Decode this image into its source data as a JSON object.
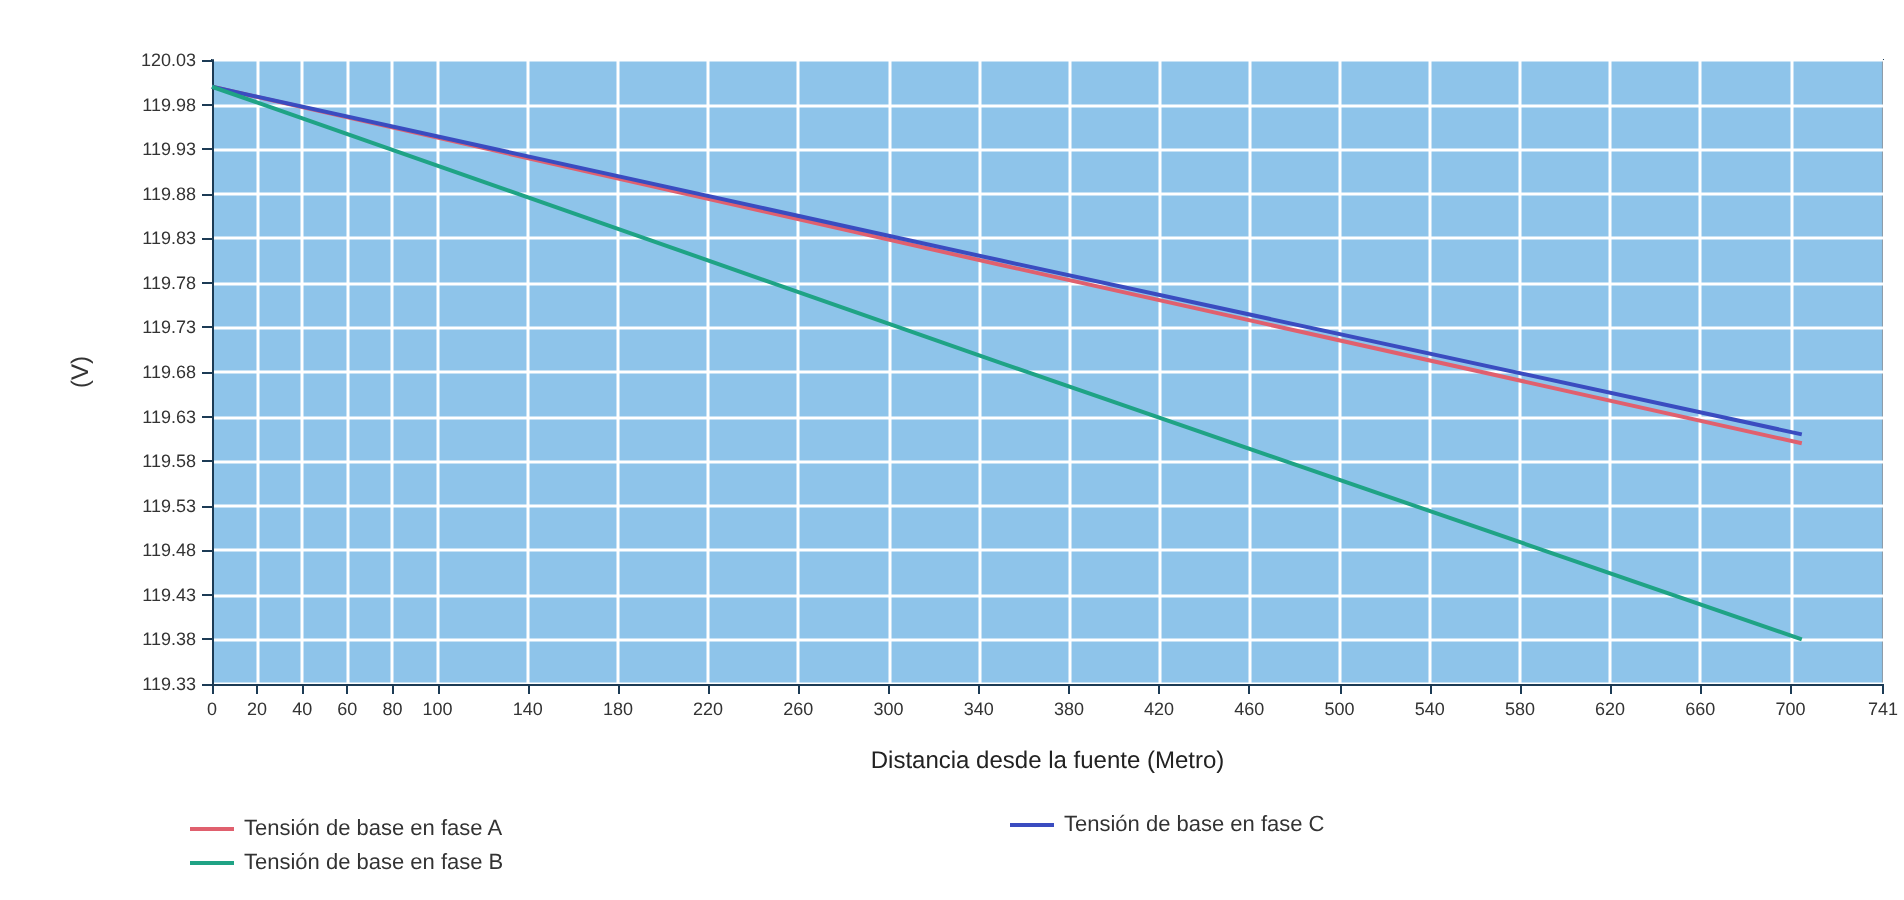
{
  "chart_data": {
    "type": "line",
    "xlabel": "Distancia desde la fuente (Metro)",
    "ylabel": "(V)",
    "series": [
      {
        "name": "Tensión de base en fase A",
        "color": "#e0606e",
        "x": [
          0,
          350,
          705
        ],
        "values": [
          120.0,
          119.8,
          119.6
        ]
      },
      {
        "name": "Tensión de base en fase C",
        "color": "#3a4cc0",
        "x": [
          0,
          350,
          705
        ],
        "values": [
          120.0,
          119.805,
          119.61
        ]
      },
      {
        "name": "Tensión de base en fase B",
        "color": "#1fa385",
        "x": [
          0,
          350,
          705
        ],
        "values": [
          120.0,
          119.69,
          119.38
        ]
      }
    ],
    "xlim": [
      0,
      741
    ],
    "xticks": [
      0,
      20,
      40,
      60,
      80,
      100,
      140,
      180,
      220,
      260,
      300,
      340,
      380,
      420,
      460,
      500,
      540,
      580,
      620,
      660,
      700,
      741
    ],
    "ylim": [
      119.33,
      120.03
    ],
    "yticks": [
      119.33,
      119.38,
      119.43,
      119.48,
      119.53,
      119.58,
      119.63,
      119.68,
      119.73,
      119.78,
      119.83,
      119.88,
      119.93,
      119.98,
      120.03
    ],
    "grid": true,
    "legend": "bottom",
    "marker": "none",
    "line_style": "solid"
  }
}
